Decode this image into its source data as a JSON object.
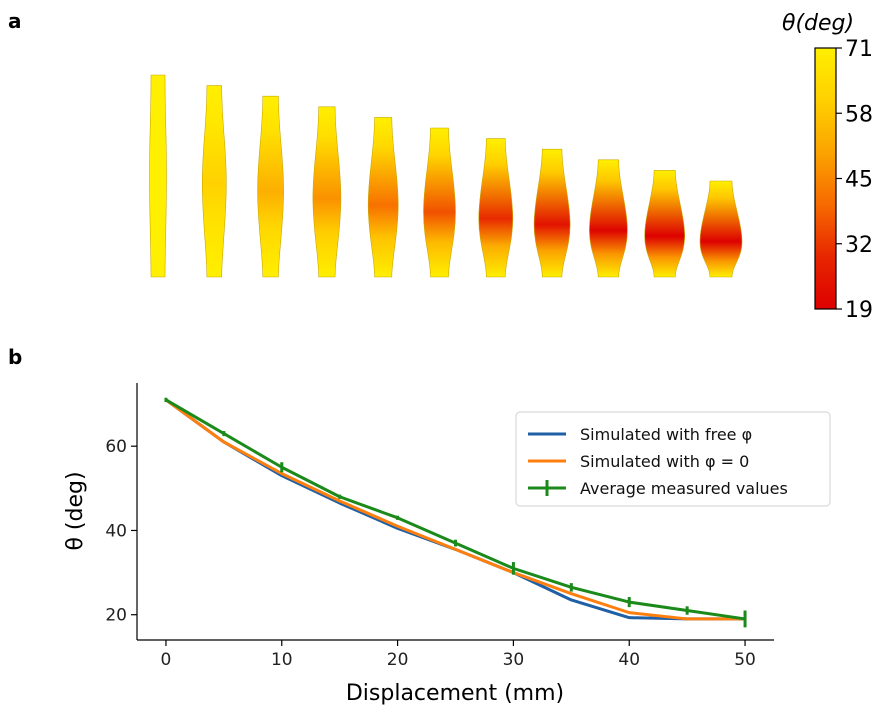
{
  "panel_a": {
    "label": "a",
    "colorbar": {
      "title": "θ(deg)",
      "min": 19,
      "max": 71,
      "ticks": [
        "71",
        "58",
        "45",
        "32",
        "19"
      ],
      "tick_values": [
        71,
        58,
        45,
        32,
        19
      ],
      "colors": [
        "#ffef00",
        "#ffd000",
        "#fba300",
        "#f76a00",
        "#e72600",
        "#dd0000"
      ]
    },
    "specimens": [
      {
        "displacement": 0,
        "center_theta": 71
      },
      {
        "displacement": 5,
        "center_theta": 61
      },
      {
        "displacement": 10,
        "center_theta": 53
      },
      {
        "displacement": 15,
        "center_theta": 47
      },
      {
        "displacement": 20,
        "center_theta": 41
      },
      {
        "displacement": 25,
        "center_theta": 36
      },
      {
        "displacement": 30,
        "center_theta": 30
      },
      {
        "displacement": 35,
        "center_theta": 24
      },
      {
        "displacement": 40,
        "center_theta": 20
      },
      {
        "displacement": 45,
        "center_theta": 19
      },
      {
        "displacement": 50,
        "center_theta": 19
      }
    ]
  },
  "panel_b": {
    "label": "b"
  },
  "chart_data": {
    "type": "line",
    "xlabel": "Displacement (mm)",
    "ylabel": "θ (deg)",
    "xlim": [
      -2.5,
      52.5
    ],
    "ylim": [
      14,
      75
    ],
    "x_ticks": [
      0,
      10,
      20,
      30,
      40,
      50
    ],
    "y_ticks": [
      20,
      40,
      60
    ],
    "grid": false,
    "legend_position": "center-right",
    "series": [
      {
        "name": "Simulated with free φ",
        "color": "#1f5fa6",
        "x": [
          0,
          5,
          10,
          15,
          20,
          25,
          30,
          35,
          40,
          45,
          50
        ],
        "y": [
          71,
          61,
          53,
          46.5,
          40.5,
          35.5,
          30,
          23.5,
          19.3,
          19,
          19
        ]
      },
      {
        "name": "Simulated with φ = 0",
        "color": "#ff7f0e",
        "x": [
          0,
          5,
          10,
          15,
          20,
          25,
          30,
          35,
          40,
          45,
          50
        ],
        "y": [
          71,
          61,
          53.5,
          47,
          41,
          35.5,
          30,
          25,
          20.5,
          19,
          19
        ]
      },
      {
        "name": "Average measured values",
        "color": "#1b8a1b",
        "x": [
          0,
          5,
          10,
          15,
          20,
          25,
          30,
          35,
          40,
          45,
          50
        ],
        "y": [
          71,
          63,
          55,
          48,
          43,
          37,
          31,
          26.5,
          23,
          21,
          19
        ],
        "yerr": [
          0.5,
          0.6,
          1.2,
          0.5,
          0.5,
          0.8,
          1.5,
          1.0,
          1.2,
          1.0,
          2.0
        ]
      }
    ]
  }
}
